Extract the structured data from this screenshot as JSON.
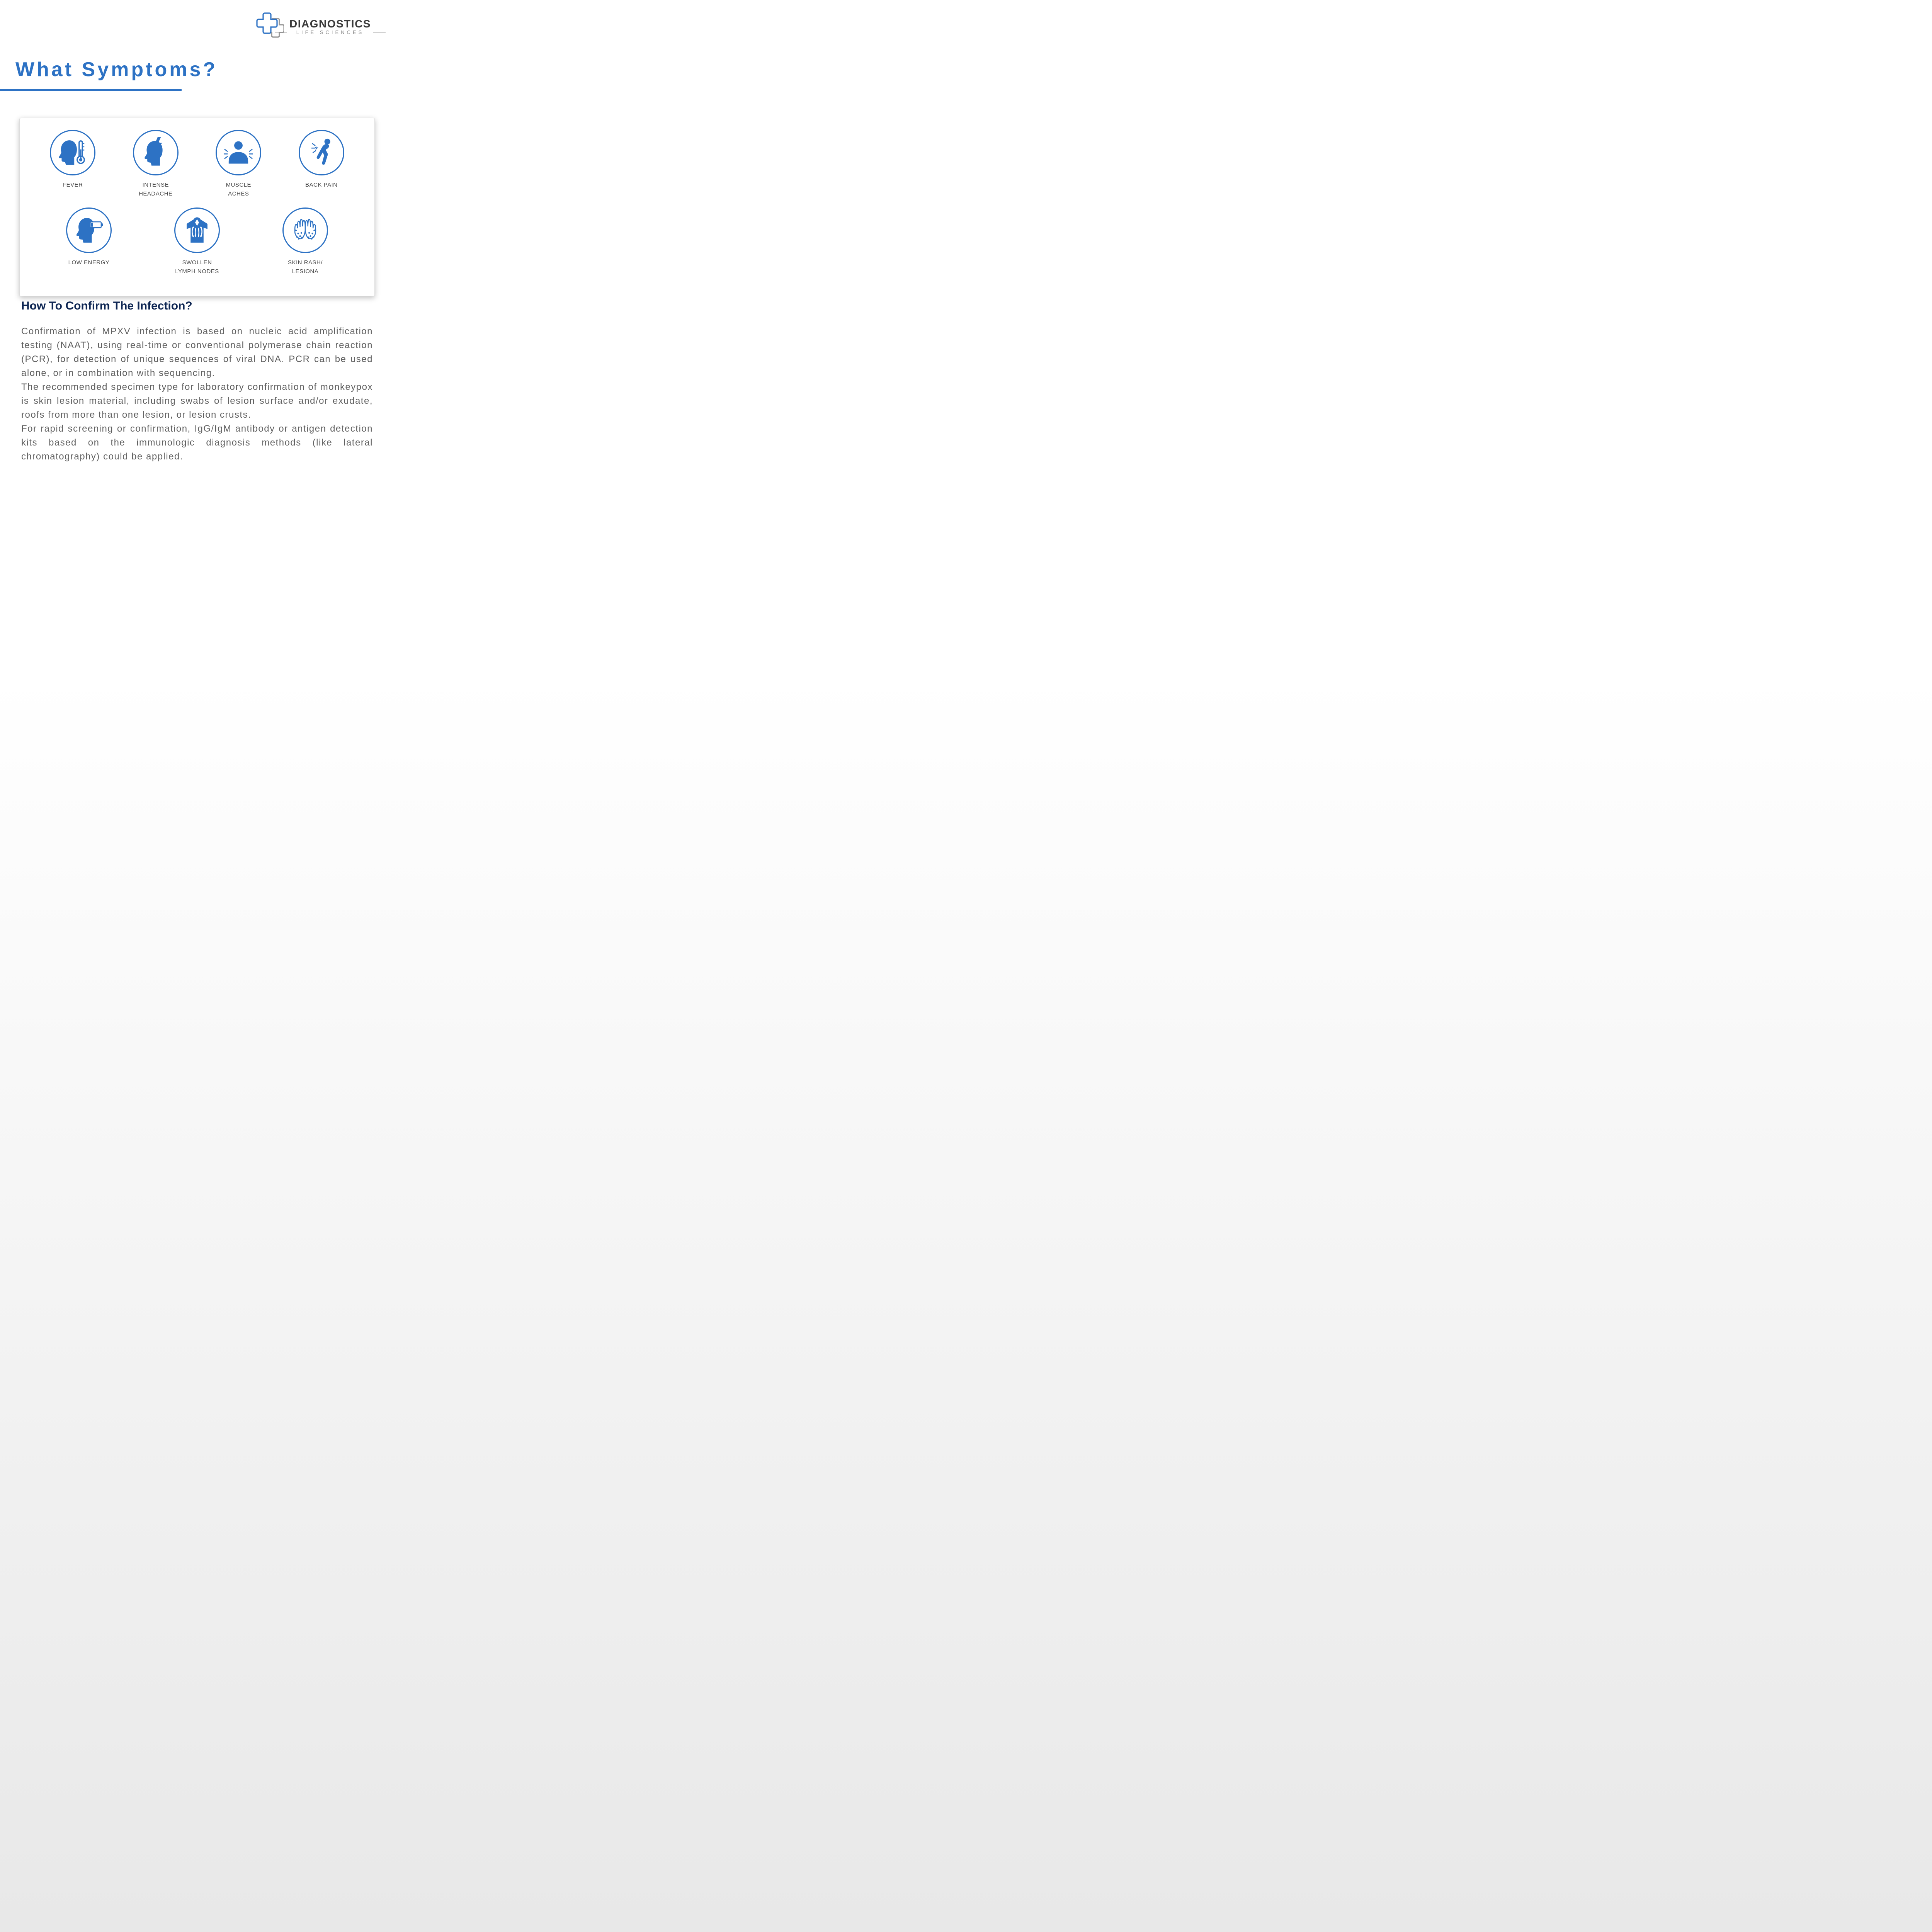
{
  "brand": {
    "name": "DIAGNOSTICS",
    "tagline": "LIFE SCIENCES",
    "accent_color": "#2d72c4",
    "gray": "#888888"
  },
  "title": "What Symptoms?",
  "title_color": "#2d72c4",
  "symptoms_row1": [
    {
      "label": "FEVER"
    },
    {
      "label": "INTENSE\nHEADACHE"
    },
    {
      "label": "MUSCLE\nACHES"
    },
    {
      "label": "BACK PAIN"
    }
  ],
  "symptoms_row2": [
    {
      "label": "LOW ENERGY"
    },
    {
      "label": "SWOLLEN\nLYMPH NODES"
    },
    {
      "label": "SKIN RASH/\nLESIONA"
    }
  ],
  "icon_fill": "#2d72c4",
  "icon_ring": "#2d72c4",
  "card_bg": "#ffffff",
  "subheading": "How To Confirm The Infection?",
  "subheading_color": "#0d2552",
  "paragraphs": [
    "Confirmation of MPXV infection is based on nucleic acid amplification testing (NAAT), using real-time or conventional polymerase chain reaction (PCR), for detection of unique sequences of viral DNA. PCR can be used alone, or in combination with sequencing.",
    "The recommended specimen type for laboratory confirmation of monkeypox is skin lesion material, including swabs of lesion surface and/or exudate, roofs from more than one lesion, or lesion crusts.",
    "For rapid screening or confirmation, IgG/IgM antibody or antigen detection kits based on the immunologic diagnosis methods (like lateral chromatography) could be applied."
  ],
  "body_color": "#606060",
  "page_bg_top": "#ffffff",
  "page_bg_bottom": "#e8e8e8"
}
